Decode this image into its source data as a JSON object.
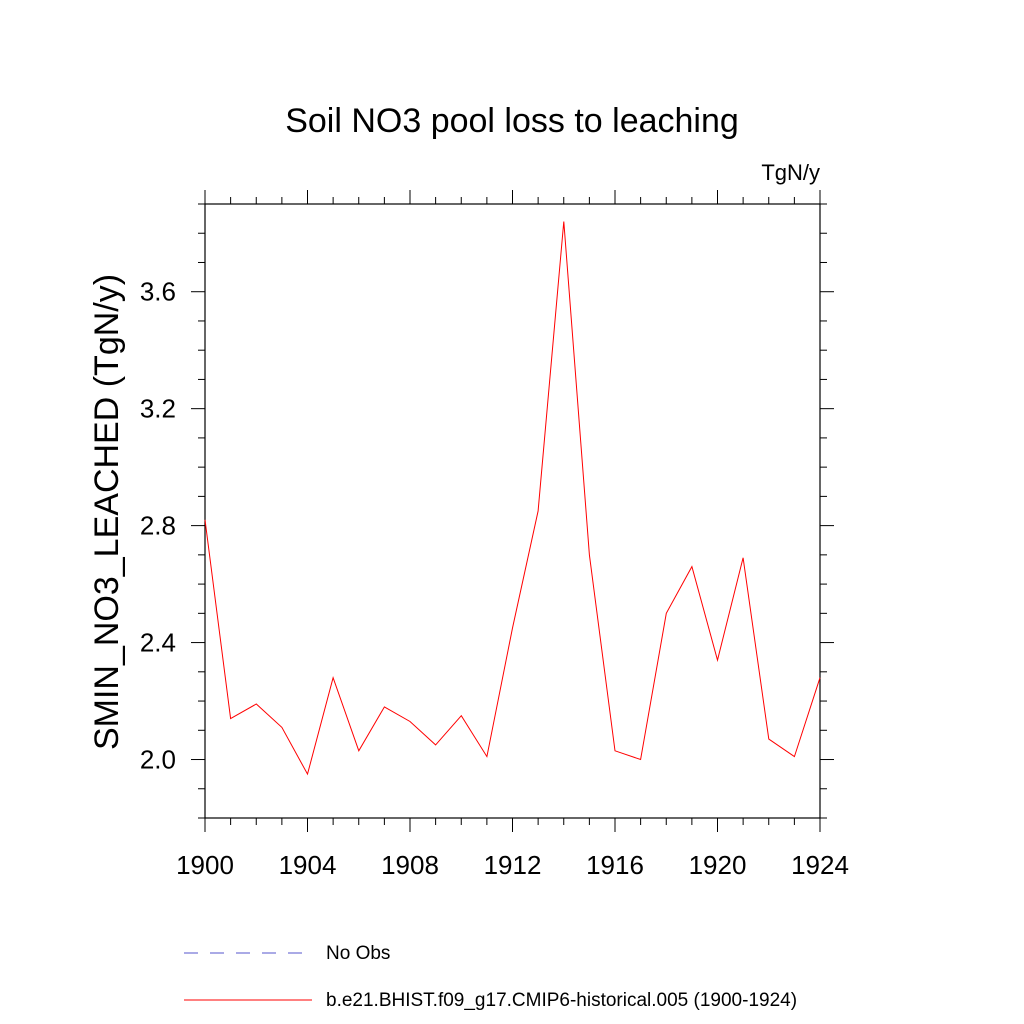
{
  "chart_data": {
    "type": "line",
    "title": "Soil NO3 pool loss to leaching",
    "units_label": "TgN/y",
    "ylabel": "SMIN_NO3_LEACHED  (TgN/y)",
    "xlabel": "",
    "xlim": [
      1900,
      1924
    ],
    "ylim": [
      1.8,
      3.9
    ],
    "x_ticks": [
      1900,
      1904,
      1908,
      1912,
      1916,
      1920,
      1924
    ],
    "y_ticks": [
      "2.0",
      "2.4",
      "2.8",
      "3.2",
      "3.6"
    ],
    "series": [
      {
        "name": "b.e21.BHIST.f09_g17.CMIP6-historical.005 (1900-1924)",
        "color": "#ff0000",
        "style": "solid",
        "x": [
          1900,
          1901,
          1902,
          1903,
          1904,
          1905,
          1906,
          1907,
          1908,
          1909,
          1910,
          1911,
          1912,
          1913,
          1914,
          1915,
          1916,
          1917,
          1918,
          1919,
          1920,
          1921,
          1922,
          1923,
          1924
        ],
        "values": [
          2.82,
          2.14,
          2.19,
          2.11,
          1.95,
          2.28,
          2.03,
          2.18,
          2.13,
          2.05,
          2.15,
          2.01,
          2.45,
          2.85,
          3.84,
          2.7,
          2.03,
          2.0,
          2.5,
          2.66,
          2.34,
          2.69,
          2.07,
          2.01,
          2.28
        ]
      }
    ],
    "legend": [
      {
        "label": "No Obs",
        "color": "#5555cc",
        "style": "dashed"
      },
      {
        "label": "b.e21.BHIST.f09_g17.CMIP6-historical.005 (1900-1924)",
        "color": "#ff0000",
        "style": "solid"
      }
    ],
    "legend_position": "bottom"
  }
}
